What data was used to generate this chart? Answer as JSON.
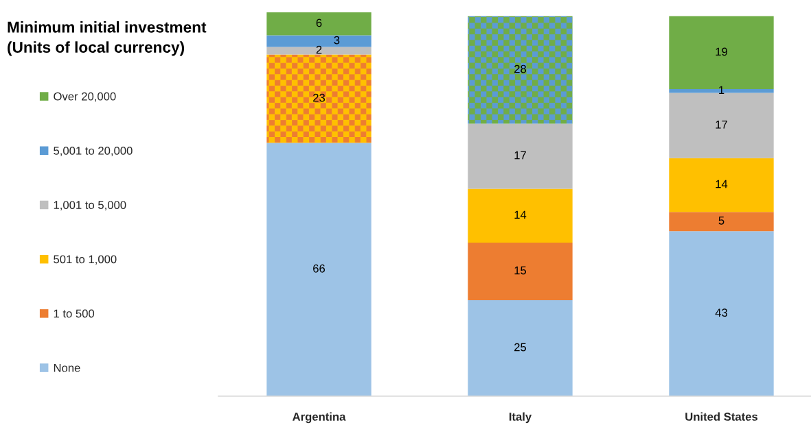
{
  "chart_data": {
    "type": "bar",
    "stacked": true,
    "categories": [
      "Argentina",
      "Italy",
      "United States"
    ],
    "legend_title": "Minimum initial investment\n(Units of local currency)",
    "legend": "left",
    "data_labels": true,
    "ylim": [
      0,
      100
    ],
    "tick_labels": "x",
    "series": [
      {
        "name": "None",
        "color": "#9dc3e6",
        "values": [
          66,
          25,
          43
        ]
      },
      {
        "name": "1 to 500",
        "color": "#ed7d31",
        "values": [
          null,
          15,
          5
        ]
      },
      {
        "color": "#ed7d31",
        "values": [
          23,
          null,
          null
        ]
      },
      {
        "name": "501 to 1,000",
        "color": "#ffc000",
        "values": [
          null,
          14,
          14
        ]
      },
      {
        "name": "1,001 to 5,000",
        "color": "#bfbfbf",
        "values": [
          2,
          17,
          17
        ]
      },
      {
        "name": "5,001 to 20,000",
        "color": "#5b9bd5",
        "values": [
          3,
          null,
          1
        ]
      },
      {
        "color": "#5b9bd5",
        "values": [
          null,
          28,
          null
        ]
      },
      {
        "name": "Over 20,000",
        "color": "#70ad47",
        "values": [
          6,
          null,
          19
        ]
      }
    ]
  }
}
